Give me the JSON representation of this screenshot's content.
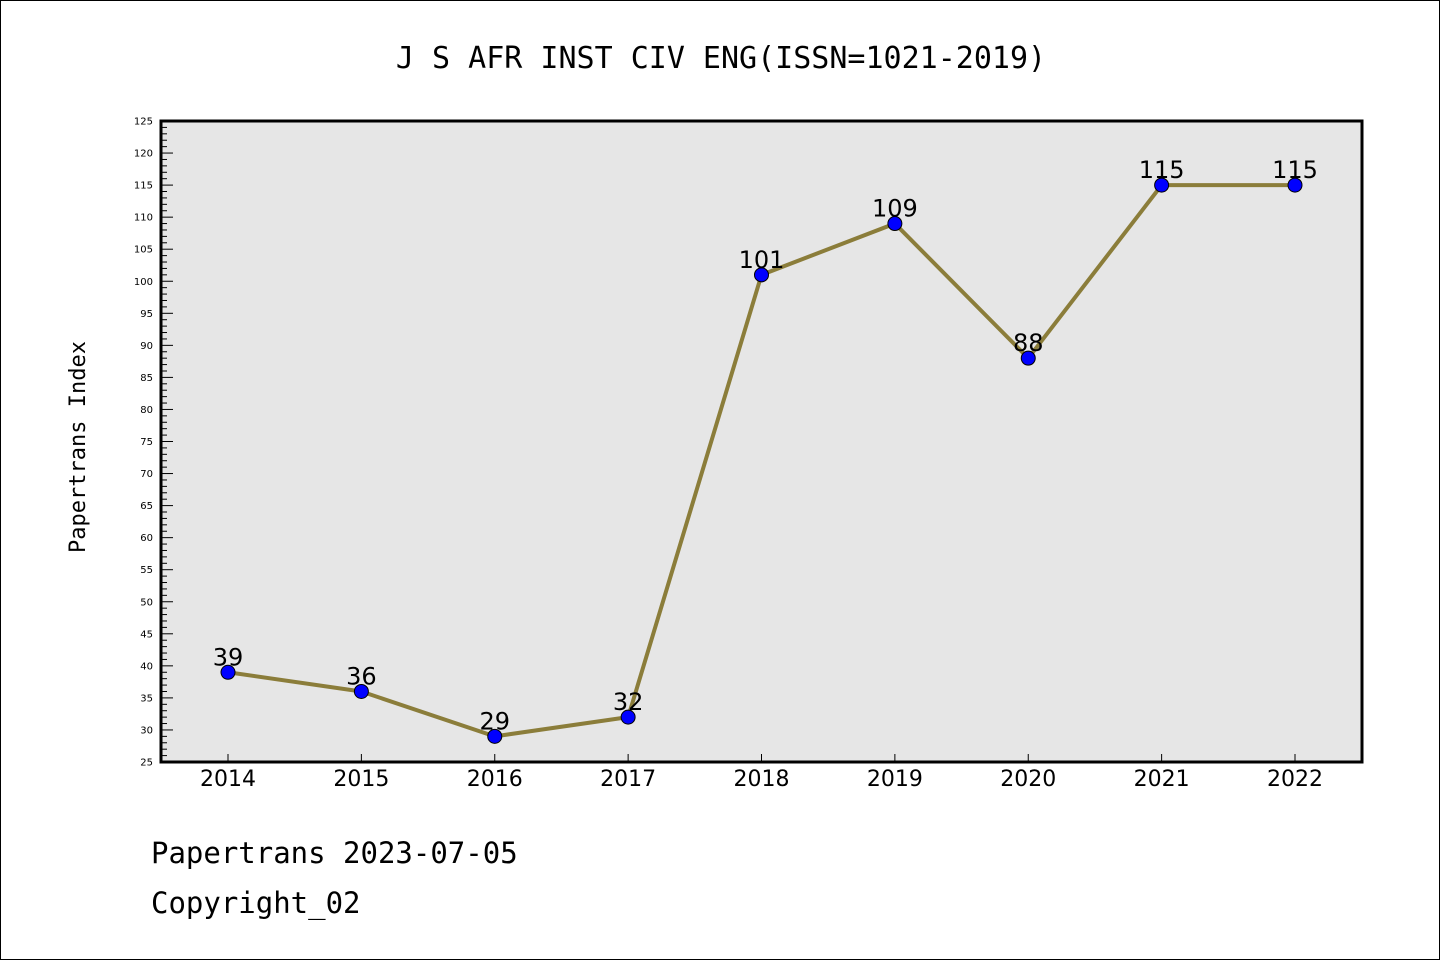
{
  "colors": {
    "line": "#8b7d3a",
    "marker": "#0000ff",
    "plot_background": "#e6e6e6",
    "frame": "#000000"
  },
  "chart_data": {
    "type": "line",
    "title": "J S AFR INST CIV ENG(ISSN=1021-2019)",
    "xlabel": "",
    "ylabel": "Papertrans Index",
    "categories": [
      "2014",
      "2015",
      "2016",
      "2017",
      "2018",
      "2019",
      "2020",
      "2021",
      "2022"
    ],
    "series": [
      {
        "values": [
          39,
          36,
          29,
          32,
          101,
          109,
          88,
          115,
          115
        ]
      }
    ],
    "data_labels": [
      "39",
      "36",
      "29",
      "32",
      "101",
      "109",
      "88",
      "115",
      "115"
    ],
    "ylim": [
      25,
      125
    ],
    "y_major_step": 5,
    "y_minor_step": 1,
    "grid": false,
    "legend": "none"
  },
  "footer": {
    "line1": "Papertrans 2023-07-05",
    "line2": "Copyright_02"
  }
}
